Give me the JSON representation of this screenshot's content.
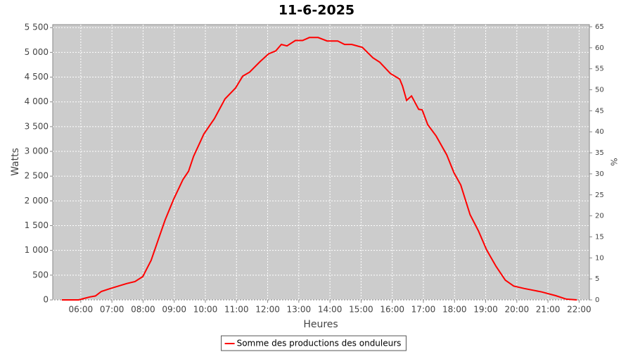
{
  "chart_data": {
    "type": "line",
    "title": "11-6-2025",
    "x_label": "Heures",
    "y_label": "Watts",
    "y2_label": "%",
    "x": [
      5.39,
      5.93,
      6.11,
      6.29,
      6.47,
      6.66,
      6.95,
      7.47,
      7.74,
      7.99,
      8.26,
      8.49,
      8.71,
      8.98,
      9.28,
      9.46,
      9.62,
      9.95,
      10.29,
      10.63,
      10.97,
      11.2,
      11.42,
      11.76,
      12.03,
      12.26,
      12.44,
      12.62,
      12.89,
      13.12,
      13.34,
      13.62,
      13.91,
      14.25,
      14.47,
      14.7,
      15.04,
      15.38,
      15.6,
      15.94,
      16.24,
      16.33,
      16.46,
      16.62,
      16.85,
      16.96,
      17.14,
      17.41,
      17.75,
      17.98,
      18.2,
      18.5,
      18.77,
      19.03,
      19.33,
      19.63,
      19.9,
      20.24,
      20.8,
      21.25,
      21.59,
      21.93
    ],
    "series": [
      {
        "name": "Somme des productions des onduleurs",
        "color": "#ff0000",
        "values": [
          0,
          0,
          30,
          60,
          80,
          170,
          230,
          330,
          370,
          470,
          800,
          1220,
          1620,
          2030,
          2430,
          2600,
          2900,
          3350,
          3660,
          4060,
          4280,
          4520,
          4600,
          4815,
          4970,
          5030,
          5160,
          5130,
          5240,
          5240,
          5300,
          5300,
          5230,
          5230,
          5160,
          5160,
          5100,
          4890,
          4800,
          4575,
          4460,
          4320,
          4030,
          4120,
          3850,
          3840,
          3540,
          3310,
          2930,
          2570,
          2320,
          1720,
          1390,
          1010,
          680,
          400,
          280,
          230,
          160,
          85,
          15,
          0
        ]
      }
    ],
    "xlim": [
      5.1,
      22.33
    ],
    "xticks": [
      {
        "value": 6,
        "label": "06:00"
      },
      {
        "value": 7,
        "label": "07:00"
      },
      {
        "value": 8,
        "label": "08:00"
      },
      {
        "value": 9,
        "label": "09:00"
      },
      {
        "value": 10,
        "label": "10:00"
      },
      {
        "value": 11,
        "label": "11:00"
      },
      {
        "value": 12,
        "label": "12:00"
      },
      {
        "value": 13,
        "label": "13:00"
      },
      {
        "value": 14,
        "label": "14:00"
      },
      {
        "value": 15,
        "label": "15:00"
      },
      {
        "value": 16,
        "label": "16:00"
      },
      {
        "value": 17,
        "label": "17:00"
      },
      {
        "value": 18,
        "label": "18:00"
      },
      {
        "value": 19,
        "label": "19:00"
      },
      {
        "value": 20,
        "label": "20:00"
      },
      {
        "value": 21,
        "label": "21:00"
      },
      {
        "value": 22,
        "label": "22:00"
      }
    ],
    "ylim": [
      0,
      5560
    ],
    "yticks": [
      0,
      500,
      {
        "value": 1000,
        "label": "1 000"
      },
      {
        "value": 1500,
        "label": "1 500"
      },
      {
        "value": 2000,
        "label": "2 000"
      },
      {
        "value": 2500,
        "label": "2 500"
      },
      {
        "value": 3000,
        "label": "3 000"
      },
      {
        "value": 3500,
        "label": "3 500"
      },
      {
        "value": 4000,
        "label": "4 000"
      },
      {
        "value": 4500,
        "label": "4 500"
      },
      {
        "value": 5000,
        "label": "5 000"
      },
      {
        "value": 5500,
        "label": "5 500"
      }
    ],
    "y2lim": [
      0,
      65.5
    ],
    "y2ticks": [
      0,
      5,
      10,
      15,
      20,
      25,
      30,
      35,
      40,
      45,
      50,
      55,
      60,
      65
    ],
    "grid": true,
    "legend": "bottom"
  }
}
